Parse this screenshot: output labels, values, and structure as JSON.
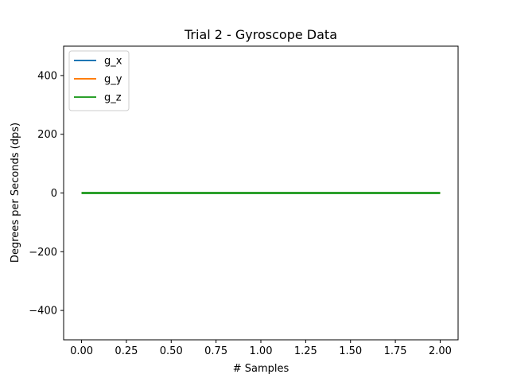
{
  "chart_data": {
    "type": "line",
    "title": "Trial 2 - Gyroscope Data",
    "xlabel": "# Samples",
    "ylabel": "Degrees per Seconds (dps)",
    "xlim": [
      -0.1,
      2.1
    ],
    "ylim": [
      -500,
      500
    ],
    "xticks": [
      0.0,
      0.25,
      0.5,
      0.75,
      1.0,
      1.25,
      1.5,
      1.75,
      2.0
    ],
    "xtick_labels": [
      "0.00",
      "0.25",
      "0.50",
      "0.75",
      "1.00",
      "1.25",
      "1.50",
      "1.75",
      "2.00"
    ],
    "yticks": [
      -400,
      -200,
      0,
      200,
      400
    ],
    "ytick_labels": [
      "−400",
      "−200",
      "0",
      "200",
      "400"
    ],
    "grid": false,
    "legend_position": "top-left",
    "x": [
      0,
      1,
      2
    ],
    "series": [
      {
        "name": "g_x",
        "color": "#1f77b4",
        "values": [
          0,
          0,
          0
        ]
      },
      {
        "name": "g_y",
        "color": "#ff7f0e",
        "values": [
          0,
          0,
          0
        ]
      },
      {
        "name": "g_z",
        "color": "#2ca02c",
        "values": [
          0,
          0,
          0
        ]
      }
    ]
  }
}
